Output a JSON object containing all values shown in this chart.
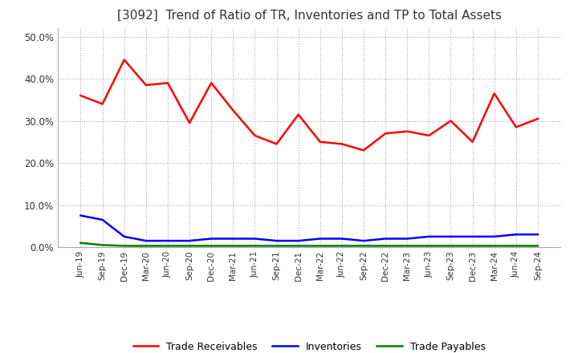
{
  "title": "[3092]  Trend of Ratio of TR, Inventories and TP to Total Assets",
  "x_labels": [
    "Jun-19",
    "Sep-19",
    "Dec-19",
    "Mar-20",
    "Jun-20",
    "Sep-20",
    "Dec-20",
    "Mar-21",
    "Jun-21",
    "Sep-21",
    "Dec-21",
    "Mar-22",
    "Jun-22",
    "Sep-22",
    "Dec-22",
    "Mar-23",
    "Jun-23",
    "Sep-23",
    "Dec-23",
    "Mar-24",
    "Jun-24",
    "Sep-24"
  ],
  "trade_receivables": [
    0.36,
    0.34,
    0.445,
    0.385,
    0.39,
    0.295,
    0.39,
    0.325,
    0.265,
    0.245,
    0.315,
    0.25,
    0.245,
    0.23,
    0.27,
    0.275,
    0.265,
    0.3,
    0.25,
    0.365,
    0.285,
    0.305
  ],
  "inventories": [
    0.075,
    0.065,
    0.025,
    0.015,
    0.015,
    0.015,
    0.02,
    0.02,
    0.02,
    0.015,
    0.015,
    0.02,
    0.02,
    0.015,
    0.02,
    0.02,
    0.025,
    0.025,
    0.025,
    0.025,
    0.03,
    0.03
  ],
  "trade_payables": [
    0.01,
    0.005,
    0.003,
    0.003,
    0.003,
    0.003,
    0.003,
    0.003,
    0.003,
    0.003,
    0.003,
    0.003,
    0.003,
    0.003,
    0.003,
    0.003,
    0.003,
    0.003,
    0.003,
    0.003,
    0.003,
    0.003
  ],
  "tr_color": "#FF0000",
  "inv_color": "#0000FF",
  "tp_color": "#008000",
  "ylim": [
    0.0,
    0.52
  ],
  "yticks": [
    0.0,
    0.1,
    0.2,
    0.3,
    0.4,
    0.5
  ],
  "background_color": "#FFFFFF",
  "grid_color": "#AAAAAA",
  "title_fontsize": 11,
  "legend_labels": [
    "Trade Receivables",
    "Inventories",
    "Trade Payables"
  ]
}
